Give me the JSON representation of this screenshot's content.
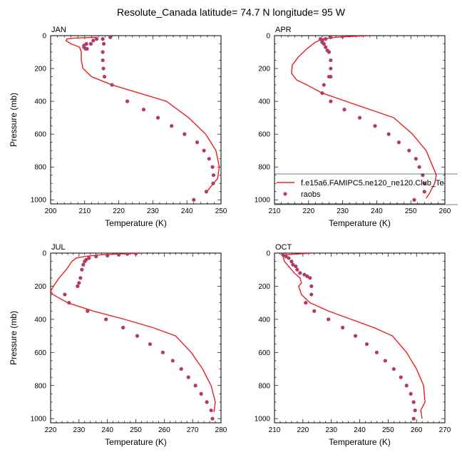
{
  "title": "Resolute_Canada  latitude= 74.7 N longitude= 95 W",
  "legend": {
    "model_label": "f.e15a6.FAMIPC5.ne120_ne120.Club_Te",
    "obs_label": "raobs",
    "model_color": "#e8201f",
    "obs_color": "#b23a6a"
  },
  "chart_data": [
    {
      "type": "line",
      "title": "JAN",
      "xlabel": "Temperature (K)",
      "ylabel": "Pressure (mb)",
      "xlim": [
        200,
        250
      ],
      "ylim": [
        1025,
        0
      ],
      "xticks": [
        200,
        210,
        220,
        230,
        240,
        250
      ],
      "yticks": [
        0,
        200,
        400,
        600,
        800,
        1000
      ],
      "grid": false,
      "series": [
        {
          "kind": "line",
          "x": [
            213.5,
            207.0,
            204.8,
            204.5,
            206.0,
            208.5,
            209.0,
            209.0,
            209.5,
            212.0,
            218.0,
            226.0,
            234.0,
            240.5,
            245.5,
            248.5,
            249.5,
            249.0,
            247.0,
            245.5
          ],
          "y": [
            10,
            15,
            20,
            30,
            50,
            70,
            100,
            150,
            200,
            250,
            300,
            350,
            400,
            500,
            600,
            700,
            800,
            870,
            920,
            960
          ]
        },
        {
          "kind": "scatter",
          "x": [
            217.5,
            213.5,
            212.5,
            211.8,
            210.5,
            209.8,
            209.8,
            210.3,
            210.7,
            215.3,
            215.6,
            215.3,
            215.3,
            215.5,
            215.8,
            218.0,
            222.5,
            227.3,
            231.5,
            235.5,
            239.3,
            243.0,
            245.0,
            246.5,
            247.5,
            247.8,
            247.7,
            245.7,
            242.0
          ],
          "y": [
            10,
            20,
            30,
            50,
            50,
            60,
            70,
            80,
            80,
            20,
            50,
            100,
            150,
            200,
            250,
            300,
            400,
            450,
            500,
            550,
            600,
            650,
            700,
            750,
            800,
            850,
            900,
            950,
            1000
          ]
        }
      ]
    },
    {
      "type": "line",
      "title": "APR",
      "xlabel": "Temperature (K)",
      "ylabel": "",
      "xlim": [
        210,
        260
      ],
      "ylim": [
        1025,
        0
      ],
      "xticks": [
        210,
        220,
        230,
        240,
        250,
        260
      ],
      "yticks": [
        0,
        200,
        400,
        600,
        800,
        1000
      ],
      "grid": false,
      "series": [
        {
          "kind": "line",
          "x": [
            238.0,
            232.0,
            228.0,
            224.0,
            222.0,
            219.5,
            217.0,
            215.2,
            215.0,
            216.5,
            219.5,
            224.0,
            231.0,
            238.0,
            245.0,
            250.5,
            254.5,
            256.5,
            257.5,
            257.0,
            255.5,
            254.5
          ],
          "y": [
            0,
            5,
            10,
            20,
            40,
            80,
            130,
            180,
            230,
            270,
            300,
            350,
            400,
            450,
            500,
            600,
            700,
            800,
            850,
            900,
            960,
            990
          ]
        },
        {
          "kind": "scatter",
          "x": [
            230.0,
            226.5,
            225.0,
            224.0,
            223.5,
            224.0,
            224.5,
            225.0,
            225.5,
            226.0,
            226.5,
            226.5,
            226.5,
            226.0,
            224.5,
            224.0,
            226.5,
            230.5,
            235.0,
            239.5,
            243.5,
            246.5,
            249.5,
            251.5,
            252.5,
            253.5,
            254.0,
            254.0,
            251.0
          ],
          "y": [
            5,
            10,
            20,
            30,
            20,
            40,
            50,
            70,
            90,
            100,
            150,
            200,
            250,
            250,
            300,
            350,
            400,
            450,
            500,
            550,
            600,
            650,
            700,
            750,
            800,
            850,
            900,
            950,
            1000
          ]
        }
      ]
    },
    {
      "type": "line",
      "title": "JUL",
      "xlabel": "Temperature (K)",
      "ylabel": "Pressure (mb)",
      "xlim": [
        220,
        280
      ],
      "ylim": [
        1025,
        0
      ],
      "xticks": [
        220,
        230,
        240,
        250,
        260,
        270,
        280
      ],
      "yticks": [
        0,
        200,
        400,
        600,
        800,
        1000
      ],
      "grid": false,
      "series": [
        {
          "kind": "line",
          "x": [
            253.0,
            247.0,
            238.0,
            232.0,
            229.0,
            227.5,
            225.5,
            223.0,
            221.0,
            220.0,
            220.8,
            226.0,
            235.0,
            246.0,
            256.0,
            264.0,
            269.5,
            273.5,
            276.5,
            278.0,
            277.5
          ],
          "y": [
            0,
            3,
            10,
            20,
            30,
            50,
            100,
            150,
            200,
            230,
            250,
            300,
            350,
            400,
            450,
            500,
            600,
            700,
            800,
            900,
            960
          ]
        },
        {
          "kind": "scatter",
          "x": [
            250.0,
            247.0,
            244.0,
            240.0,
            236.0,
            233.5,
            232.5,
            232.0,
            231.5,
            231.0,
            230.5,
            230.0,
            229.5,
            229.5,
            225.0,
            226.5,
            233.0,
            239.5,
            245.5,
            250.5,
            255.0,
            259.5,
            263.0,
            266.0,
            268.5,
            271.0,
            273.0,
            275.0,
            276.5,
            277.0
          ],
          "y": [
            3,
            5,
            10,
            15,
            20,
            30,
            40,
            50,
            70,
            100,
            150,
            180,
            200,
            200,
            250,
            300,
            350,
            400,
            450,
            500,
            550,
            600,
            650,
            700,
            750,
            800,
            850,
            900,
            950,
            1000
          ]
        }
      ]
    },
    {
      "type": "line",
      "title": "OCT",
      "xlabel": "Temperature (K)",
      "ylabel": "",
      "xlim": [
        210,
        270
      ],
      "ylim": [
        1025,
        0
      ],
      "xticks": [
        210,
        220,
        230,
        240,
        250,
        260,
        270
      ],
      "yticks": [
        0,
        200,
        400,
        600,
        800,
        1000
      ],
      "grid": false,
      "series": [
        {
          "kind": "line",
          "x": [
            223.5,
            218.0,
            214.0,
            213.0,
            213.5,
            215.0,
            217.0,
            219.0,
            219.5,
            218.5,
            219.5,
            222.5,
            229.0,
            237.0,
            245.0,
            251.5,
            256.5,
            260.0,
            262.5,
            263.0,
            261.5,
            262.0
          ],
          "y": [
            0,
            5,
            10,
            20,
            50,
            80,
            120,
            150,
            180,
            200,
            250,
            300,
            350,
            400,
            450,
            500,
            600,
            700,
            800,
            900,
            950,
            1000
          ]
        },
        {
          "kind": "scatter",
          "x": [
            213.0,
            214.0,
            215.0,
            216.0,
            216.5,
            217.5,
            218.0,
            219.0,
            220.5,
            221.5,
            222.5,
            223.0,
            223.0,
            221.0,
            224.0,
            229.0,
            234.0,
            238.5,
            242.5,
            246.0,
            249.0,
            252.0,
            254.5,
            256.5,
            258.0,
            259.0,
            259.5,
            259.0
          ],
          "y": [
            10,
            20,
            30,
            50,
            70,
            80,
            100,
            120,
            130,
            140,
            150,
            200,
            250,
            300,
            350,
            400,
            450,
            500,
            550,
            600,
            650,
            700,
            750,
            800,
            850,
            900,
            950,
            1000
          ]
        }
      ]
    }
  ]
}
